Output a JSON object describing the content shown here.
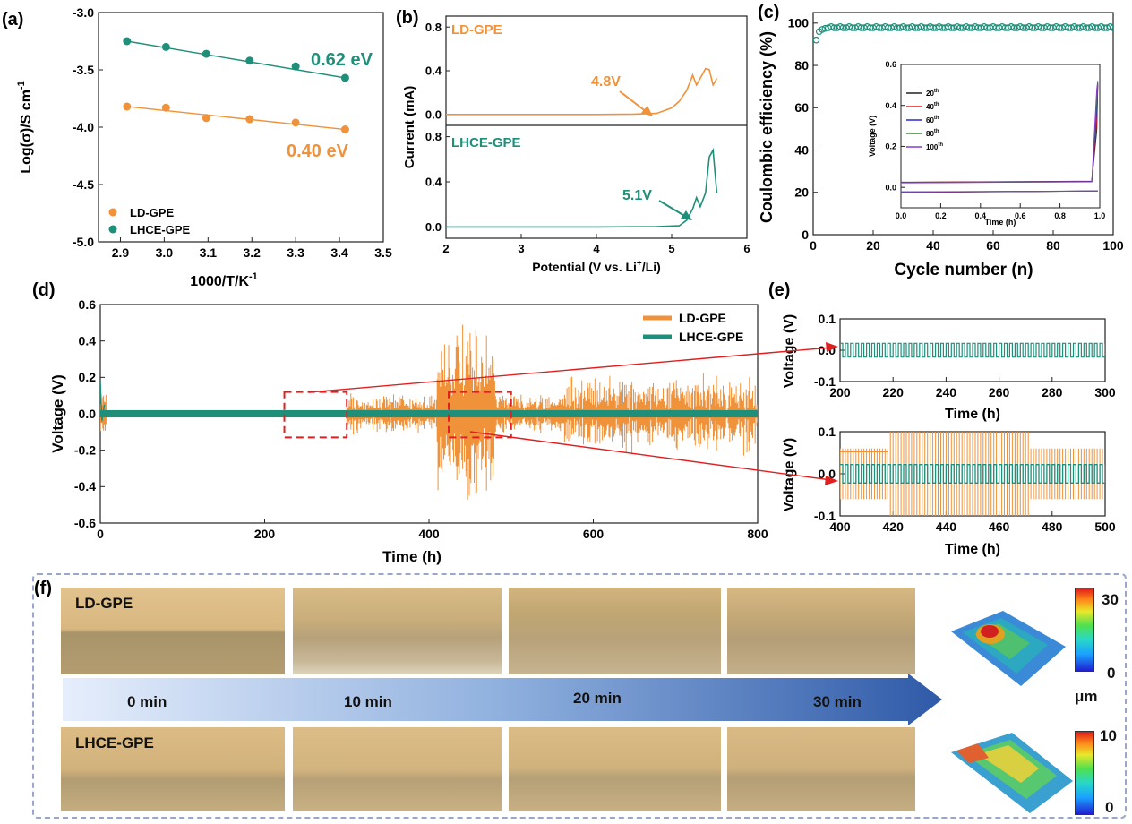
{
  "panels": {
    "a": "(a)",
    "b": "(b)",
    "c": "(c)",
    "d": "(d)",
    "e": "(e)",
    "f": "(f)"
  },
  "colors": {
    "orange": "#f0923a",
    "teal": "#1f8f7a",
    "red": "#e02020",
    "blue": "#3b5fa8",
    "purple": "#8a3ad0"
  },
  "chart_data": [
    {
      "id": "a",
      "type": "scatter",
      "xlabel": "1000/T/K",
      "xlabel_sup": "-1",
      "ylabel": "Log(σ)/S cm",
      "ylabel_sup": "-1",
      "xlim": [
        2.85,
        3.5
      ],
      "ylim": [
        -5.0,
        -3.0
      ],
      "xticks": [
        "2.9",
        "3.0",
        "3.1",
        "3.2",
        "3.3",
        "3.4",
        "3.5"
      ],
      "yticks": [
        "-5.0",
        "-4.5",
        "-4.0",
        "-3.5",
        "-3.0"
      ],
      "series": [
        {
          "name": "LD-GPE",
          "color": "#f0923a",
          "x": [
            2.915,
            3.004,
            3.096,
            3.195,
            3.3,
            3.413
          ],
          "y": [
            -3.82,
            -3.83,
            -3.92,
            -3.93,
            -3.96,
            -4.02
          ],
          "fit": [
            [
              2.915,
              -3.82
            ],
            [
              3.413,
              -4.02
            ]
          ]
        },
        {
          "name": "LHCE-GPE",
          "color": "#1f8f7a",
          "x": [
            2.915,
            3.004,
            3.096,
            3.195,
            3.3,
            3.413
          ],
          "y": [
            -3.25,
            -3.3,
            -3.36,
            -3.42,
            -3.47,
            -3.57
          ],
          "fit": [
            [
              2.915,
              -3.25
            ],
            [
              3.413,
              -3.57
            ]
          ]
        }
      ],
      "annotations": [
        "0.62 eV",
        "0.40 eV"
      ]
    },
    {
      "id": "b",
      "type": "line",
      "xlabel": "Potential (V vs. Li",
      "xlabel_sup": "+",
      "xlabel_tail": "/Li)",
      "ylabel": "Current (mA)",
      "xlim": [
        2,
        6
      ],
      "xticks": [
        "2",
        "3",
        "4",
        "5",
        "6"
      ],
      "top": {
        "name": "LD-GPE",
        "color": "#f0923a",
        "ylim": [
          -0.1,
          0.9
        ],
        "yticks": [
          "0.0",
          "0.4",
          "0.8"
        ],
        "annotation": "4.8V",
        "x": [
          2.0,
          3.0,
          4.0,
          4.5,
          4.8,
          5.0,
          5.1,
          5.2,
          5.28,
          5.33,
          5.38,
          5.45,
          5.5,
          5.55,
          5.6
        ],
        "y": [
          0.0,
          0.0,
          0.0,
          0.003,
          0.01,
          0.06,
          0.12,
          0.22,
          0.36,
          0.27,
          0.33,
          0.42,
          0.41,
          0.27,
          0.33
        ]
      },
      "bottom": {
        "name": "LHCE-GPE",
        "color": "#1f8f7a",
        "ylim": [
          -0.1,
          0.9
        ],
        "yticks": [
          "0.0",
          "0.4",
          "0.8"
        ],
        "annotation": "5.1V",
        "x": [
          2.0,
          3.0,
          4.0,
          4.8,
          5.1,
          5.2,
          5.28,
          5.33,
          5.38,
          5.45,
          5.5,
          5.55,
          5.6
        ],
        "y": [
          0.0,
          0.0,
          0.0,
          0.003,
          0.01,
          0.06,
          0.16,
          0.26,
          0.18,
          0.3,
          0.62,
          0.68,
          0.3
        ]
      }
    },
    {
      "id": "c",
      "type": "scatter",
      "xlabel": "Cycle  number (n)",
      "ylabel": "Coulombic efficiency (%)",
      "xlim": [
        0,
        100
      ],
      "ylim": [
        0,
        105
      ],
      "xticks": [
        "0",
        "20",
        "40",
        "60",
        "80",
        "100"
      ],
      "yticks": [
        "0",
        "20",
        "40",
        "60",
        "80",
        "100"
      ],
      "series": [
        {
          "name": "CE",
          "color": "#1f8f7a",
          "x_start": 1,
          "x_end": 100,
          "first_values": [
            92,
            96,
            97,
            97.5
          ],
          "plateau": 98
        }
      ],
      "inset": {
        "xlabel": "Time (h)",
        "ylabel": "Voltage (V)",
        "xlim": [
          0,
          1.0
        ],
        "ylim": [
          -0.1,
          0.6
        ],
        "xticks": [
          "0.0",
          "0.2",
          "0.4",
          "0.6",
          "0.8",
          "1.0"
        ],
        "yticks": [
          "0.0",
          "0.2",
          "0.4",
          "0.6"
        ],
        "legend": [
          {
            "label": "20",
            "sup": "th",
            "color": "#222222"
          },
          {
            "label": "40",
            "sup": "th",
            "color": "#e02020"
          },
          {
            "label": "60",
            "sup": "th",
            "color": "#2a2ad0"
          },
          {
            "label": "80",
            "sup": "th",
            "color": "#3a8a3a"
          },
          {
            "label": "100",
            "sup": "th",
            "color": "#8a3ad0"
          }
        ]
      }
    },
    {
      "id": "d",
      "type": "line",
      "xlabel": "Time (h)",
      "ylabel": "Voltage (V)",
      "xlim": [
        0,
        800
      ],
      "ylim": [
        -0.6,
        0.6
      ],
      "xticks": [
        "0",
        "200",
        "400",
        "600",
        "800"
      ],
      "yticks": [
        "-0.6",
        "-0.4",
        "-0.2",
        "0.0",
        "0.2",
        "0.4",
        "0.6"
      ],
      "series": [
        {
          "name": "LD-GPE",
          "color": "#f0923a",
          "noisy_from": 300,
          "big_burst": [
            410,
            480
          ],
          "amp_peak": 0.42
        },
        {
          "name": "LHCE-GPE",
          "color": "#1f8f7a",
          "band": 0.02
        }
      ],
      "zoom_boxes": [
        [
          200,
          300
        ],
        [
          400,
          500
        ]
      ]
    },
    {
      "id": "e1",
      "type": "line",
      "xlabel": "Time (h)",
      "ylabel": "Voltage (V)",
      "xlim": [
        200,
        300
      ],
      "ylim": [
        -0.1,
        0.1
      ],
      "xticks": [
        "200",
        "220",
        "240",
        "260",
        "280",
        "300"
      ],
      "yticks": [
        "-0.1",
        "0.0",
        "0.1"
      ],
      "series": [
        {
          "name": "LHCE-GPE",
          "color": "#1f8f7a",
          "amplitude": 0.022
        }
      ]
    },
    {
      "id": "e2",
      "type": "line",
      "xlabel": "Time (h)",
      "ylabel": "Voltage (V)",
      "xlim": [
        400,
        500
      ],
      "ylim": [
        -0.1,
        0.1
      ],
      "xticks": [
        "400",
        "420",
        "440",
        "460",
        "480",
        "500"
      ],
      "yticks": [
        "-0.1",
        "0.0",
        "0.1"
      ],
      "series": [
        {
          "name": "LD-GPE",
          "color": "#f0923a",
          "amplitude": 0.06
        },
        {
          "name": "LHCE-GPE",
          "color": "#1f8f7a",
          "amplitude": 0.022
        }
      ]
    }
  ],
  "panel_f": {
    "row1_label": "LD-GPE",
    "row2_label": "LHCE-GPE",
    "times": [
      "0 min",
      "10 min",
      "20 min",
      "30 min"
    ],
    "colorbar1": {
      "max": "30",
      "min": "0"
    },
    "colorbar2": {
      "max": "10",
      "min": "0"
    },
    "unit": "μm"
  }
}
